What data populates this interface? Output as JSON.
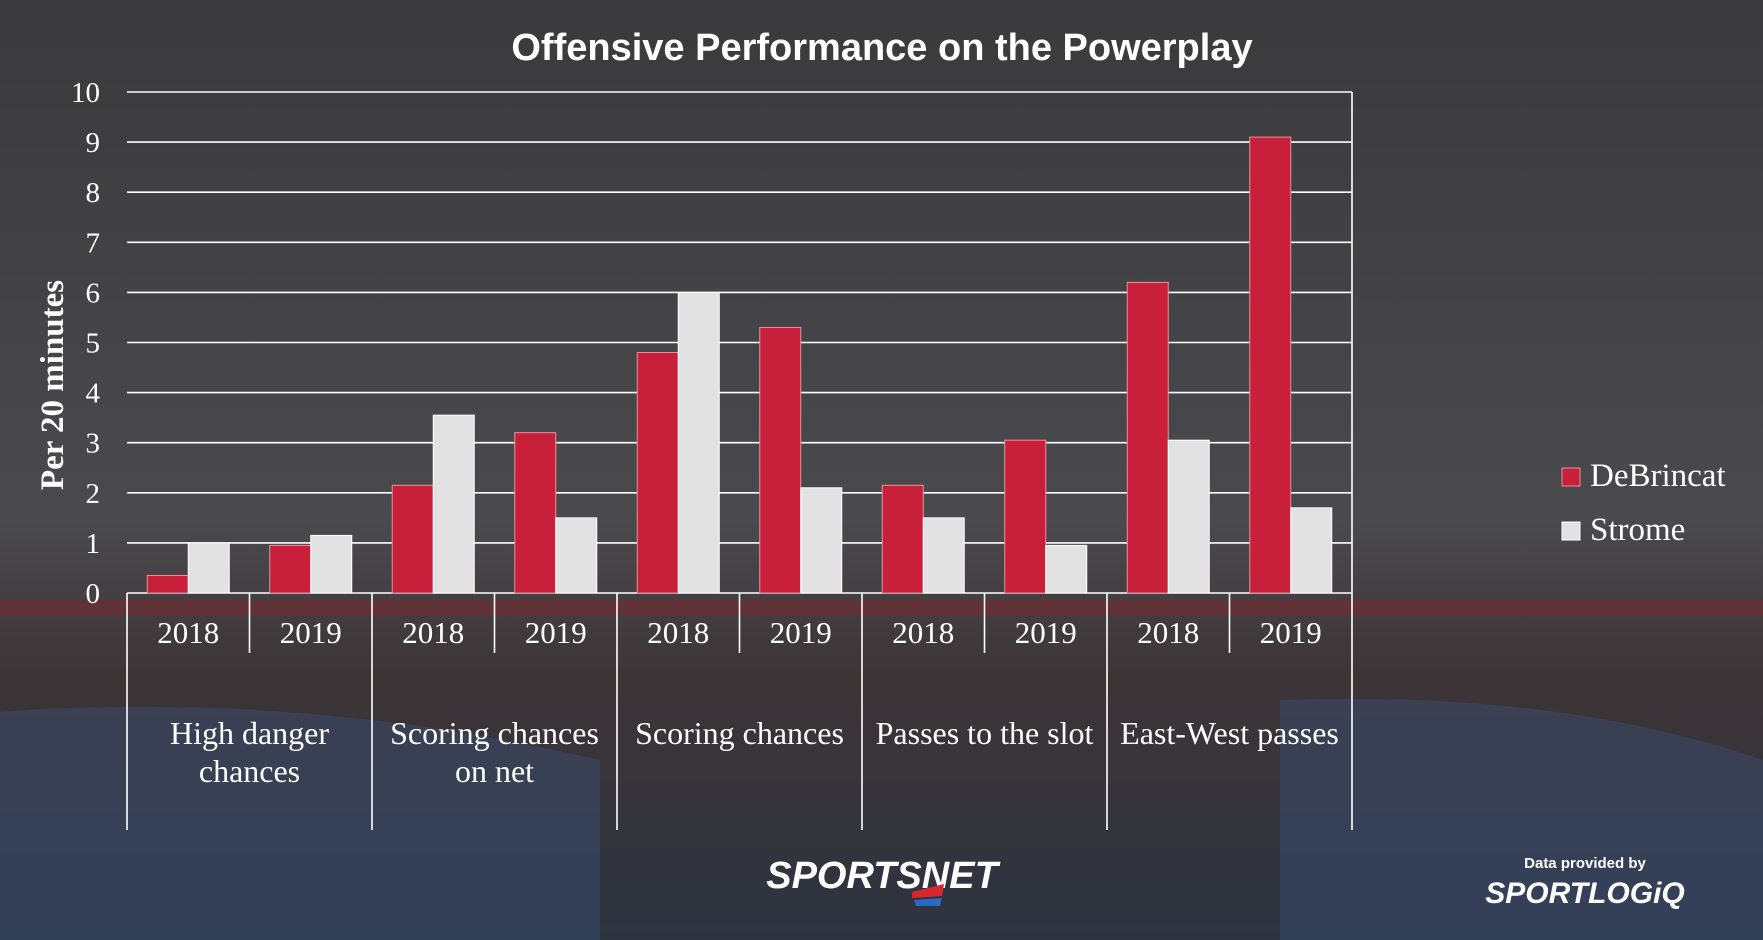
{
  "chart_data": {
    "type": "bar",
    "title": "Offensive Performance on the Powerplay",
    "ylabel": "Per 20 minutes",
    "xlabel": "",
    "ylim": [
      0,
      10
    ],
    "yticks": [
      0,
      1,
      2,
      3,
      4,
      5,
      6,
      7,
      8,
      9,
      10
    ],
    "grid": true,
    "legend_position": "right",
    "groups": [
      {
        "label_lines": [
          "High danger",
          "chances"
        ],
        "years": [
          "2018",
          "2019"
        ]
      },
      {
        "label_lines": [
          "Scoring chances",
          "on net"
        ],
        "years": [
          "2018",
          "2019"
        ]
      },
      {
        "label_lines": [
          "Scoring chances"
        ],
        "years": [
          "2018",
          "2019"
        ]
      },
      {
        "label_lines": [
          "Passes to the slot"
        ],
        "years": [
          "2018",
          "2019"
        ]
      },
      {
        "label_lines": [
          "East-West passes"
        ],
        "years": [
          "2018",
          "2019"
        ]
      }
    ],
    "categories": [
      "High danger chances 2018",
      "High danger chances 2019",
      "Scoring chances on net 2018",
      "Scoring chances on net 2019",
      "Scoring chances 2018",
      "Scoring chances 2019",
      "Passes to the slot 2018",
      "Passes to the slot 2019",
      "East-West passes 2018",
      "East-West passes 2019"
    ],
    "series": [
      {
        "name": "DeBrincat",
        "color": "#c8203a",
        "values": [
          0.35,
          0.95,
          2.15,
          3.2,
          4.8,
          5.3,
          2.15,
          3.05,
          6.2,
          9.1
        ]
      },
      {
        "name": "Strome",
        "color": "#e2e2e2",
        "values": [
          1.0,
          1.15,
          3.55,
          1.5,
          6.0,
          2.1,
          1.5,
          0.95,
          3.05,
          1.7
        ]
      }
    ]
  },
  "credits": {
    "brand": "SPORTSNET",
    "data_note": "Data provided by",
    "data_brand": "SPORTLOGiQ"
  }
}
